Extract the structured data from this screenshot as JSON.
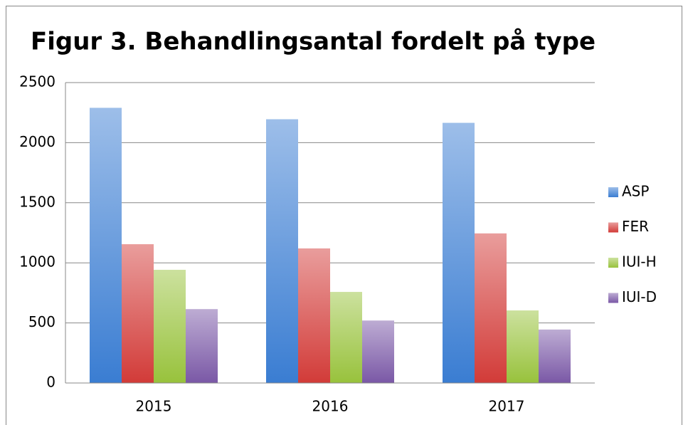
{
  "chart_data": {
    "type": "bar",
    "title": "Figur 3. Behandlingsantal fordelt på type",
    "categories": [
      "2015",
      "2016",
      "2017"
    ],
    "series": [
      {
        "name": "ASP",
        "color": "#3a7dd2",
        "values": [
          2290,
          2195,
          2165
        ]
      },
      {
        "name": "FER",
        "color": "#d23b38",
        "values": [
          1155,
          1120,
          1245
        ]
      },
      {
        "name": "IUI-H",
        "color": "#98c23c",
        "values": [
          942,
          758,
          604
        ]
      },
      {
        "name": "IUI-D",
        "color": "#7a58a6",
        "values": [
          615,
          520,
          445
        ]
      }
    ],
    "ylim": [
      0,
      2500
    ],
    "yticks": [
      0,
      500,
      1000,
      1500,
      2000,
      2500
    ],
    "grid": true,
    "legend": "right"
  }
}
